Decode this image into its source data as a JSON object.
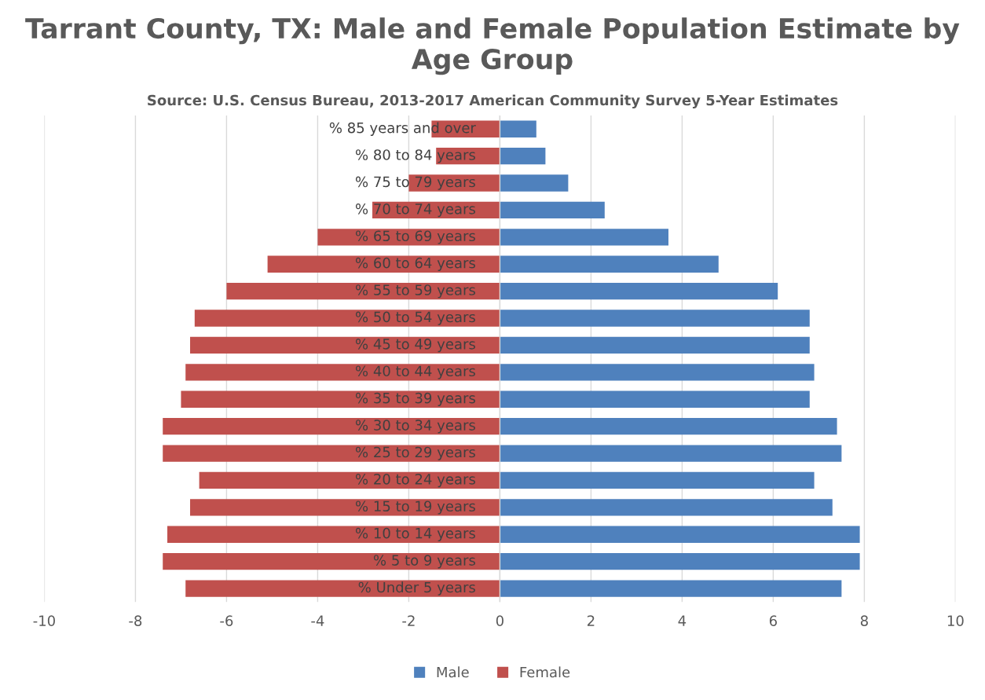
{
  "chart_data": {
    "type": "bar",
    "orientation": "horizontal",
    "title": "Tarrant County, TX: Male and Female Population Estimate by Age Group",
    "subtitle": "Source: U.S. Census Bureau, 2013-2017 American Community Survey 5-Year Estimates",
    "categories": [
      "% 85 years and over",
      "% 80 to 84 years",
      "% 75 to 79 years",
      "% 70 to 74 years",
      "% 65 to 69 years",
      "% 60 to 64 years",
      "% 55 to 59 years",
      "% 50 to 54 years",
      "% 45 to 49 years",
      "% 40 to 44 years",
      "% 35 to 39 years",
      "% 30 to 34 years",
      "% 25 to 29 years",
      "% 20 to 24 years",
      "% 15 to 19 years",
      "% 10 to 14 years",
      "% 5 to 9 years",
      "% Under 5 years"
    ],
    "series": [
      {
        "name": "Male",
        "color": "#4f81bd",
        "values": [
          0.8,
          1.0,
          1.5,
          2.3,
          3.7,
          4.8,
          6.1,
          6.8,
          6.8,
          6.9,
          6.8,
          7.4,
          7.5,
          6.9,
          7.3,
          7.9,
          7.9,
          7.5
        ]
      },
      {
        "name": "Female",
        "color": "#c0504d",
        "values": [
          -1.5,
          -1.4,
          -2.0,
          -2.8,
          -4.0,
          -5.1,
          -6.0,
          -6.7,
          -6.8,
          -6.9,
          -7.0,
          -7.4,
          -7.4,
          -6.6,
          -6.8,
          -7.3,
          -7.4,
          -6.9
        ]
      }
    ],
    "xlim": [
      -10,
      10
    ],
    "xticks": [
      -10,
      -8,
      -6,
      -4,
      -2,
      0,
      2,
      4,
      6,
      8,
      10
    ],
    "grid": "x",
    "legend": "bottom",
    "stacked": true
  }
}
